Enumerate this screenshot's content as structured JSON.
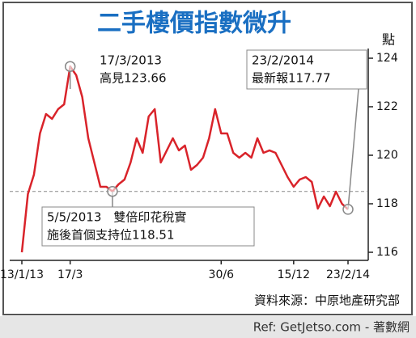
{
  "chart_data": {
    "type": "line",
    "title": "二手樓價指數微升",
    "y_unit": "點",
    "color": "#d9232a",
    "categories": [
      "13/1/13",
      null,
      null,
      null,
      null,
      null,
      null,
      null,
      "17/3",
      null,
      null,
      null,
      null,
      null,
      null,
      null,
      null,
      null,
      null,
      null,
      null,
      null,
      null,
      null,
      null,
      null,
      null,
      null,
      null,
      null,
      null,
      null,
      null,
      "30/6",
      null,
      null,
      null,
      null,
      null,
      null,
      null,
      null,
      null,
      null,
      null,
      "15/12",
      null,
      null,
      null,
      null,
      null,
      null,
      null,
      null,
      "23/2/14"
    ],
    "values": [
      116.0,
      118.4,
      119.2,
      120.9,
      121.7,
      121.5,
      121.9,
      122.1,
      123.66,
      123.3,
      122.4,
      120.7,
      119.7,
      118.7,
      118.7,
      118.51,
      118.8,
      119.0,
      119.7,
      120.7,
      120.1,
      121.6,
      121.9,
      119.7,
      120.2,
      120.7,
      120.2,
      120.4,
      119.4,
      119.6,
      119.9,
      120.7,
      121.9,
      120.9,
      120.9,
      120.1,
      119.9,
      120.1,
      119.9,
      120.7,
      120.1,
      120.2,
      120.1,
      119.6,
      119.1,
      118.7,
      119.0,
      119.1,
      118.9,
      117.8,
      118.3,
      117.9,
      118.5,
      118.0,
      117.77
    ],
    "ylim": [
      116,
      124
    ],
    "yticks": [
      116,
      118,
      120,
      122,
      124
    ],
    "support_level": 118.51,
    "annotations": [
      [
        "17/3/2013",
        "高見123.66"
      ],
      [
        "23/2/2014",
        "最新報117.77"
      ],
      [
        "5/5/2013　雙倍印花稅實",
        "施後首個支持位118.51"
      ]
    ],
    "source": "資料來源：中原地產研究部"
  },
  "footer": "Ref: GetJetso.com - 著數網"
}
